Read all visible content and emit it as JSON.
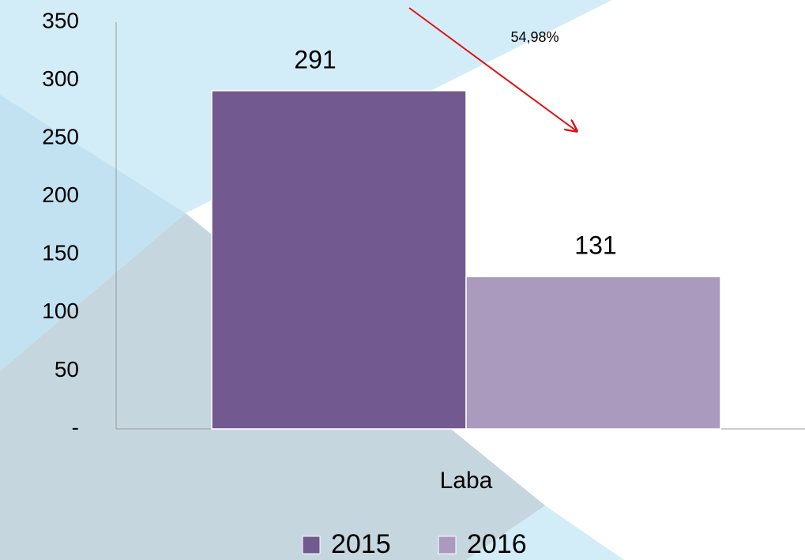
{
  "chart_data": {
    "type": "bar",
    "categories": [
      "Laba"
    ],
    "series": [
      {
        "name": "2015",
        "color": "#72598f",
        "values": [
          291
        ]
      },
      {
        "name": "2016",
        "color": "#a99abe",
        "values": [
          131
        ]
      }
    ],
    "ylim": [
      0,
      350
    ],
    "yticks": [
      {
        "value": 0,
        "label": "-"
      },
      50,
      100,
      150,
      200,
      250,
      300,
      350
    ],
    "grid": false,
    "legend": "bottom",
    "annotations": [
      "54,98%"
    ]
  }
}
